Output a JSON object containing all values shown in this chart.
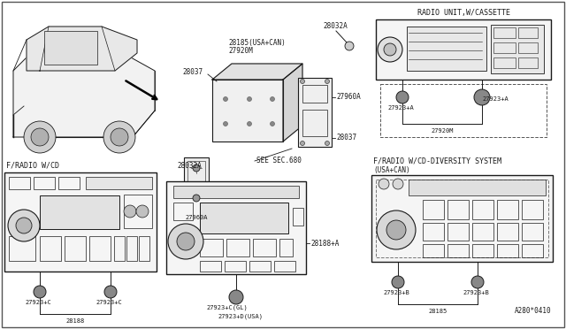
{
  "bg": "#ffffff",
  "lc": "#1a1a1a",
  "fc_light": "#f0f0f0",
  "fc_mid": "#e0e0e0",
  "fc_dark": "#c8c8c8",
  "labels": {
    "radio_cassette_title": "RADIO UNIT,W/CASSETTE",
    "radio_cd_title": "F/RADIO W/CD",
    "div_title1": "F/RADIO W/CD-DIVERSITY SYSTEM",
    "div_title2": "(USA+CAN)",
    "see_sec": "SEE SEC.680",
    "L28032A_top": "28032A",
    "L28185_top": "28185(USA+CAN)",
    "L27920M_top": "27920M",
    "L28037_top": "28037",
    "L28032A_mid": "28032A",
    "L27960A_right": "27960A",
    "L28037_mid": "28037",
    "L27923A_L": "27923+A",
    "L27923A_R": "27923+A",
    "L27920M_bot": "27920M",
    "L27923C_L": "27923+C",
    "L27923C_R": "27923+C",
    "L28188": "28188",
    "L28188A": "28188+A",
    "L27923C_GL": "27923+C(GL)",
    "L27923D_USA": "27923+D(USA)",
    "L27923B_L": "27923+B",
    "L27923B_R": "27923+B",
    "L28185_bot": "28185",
    "L_A280": "A280*0410"
  }
}
